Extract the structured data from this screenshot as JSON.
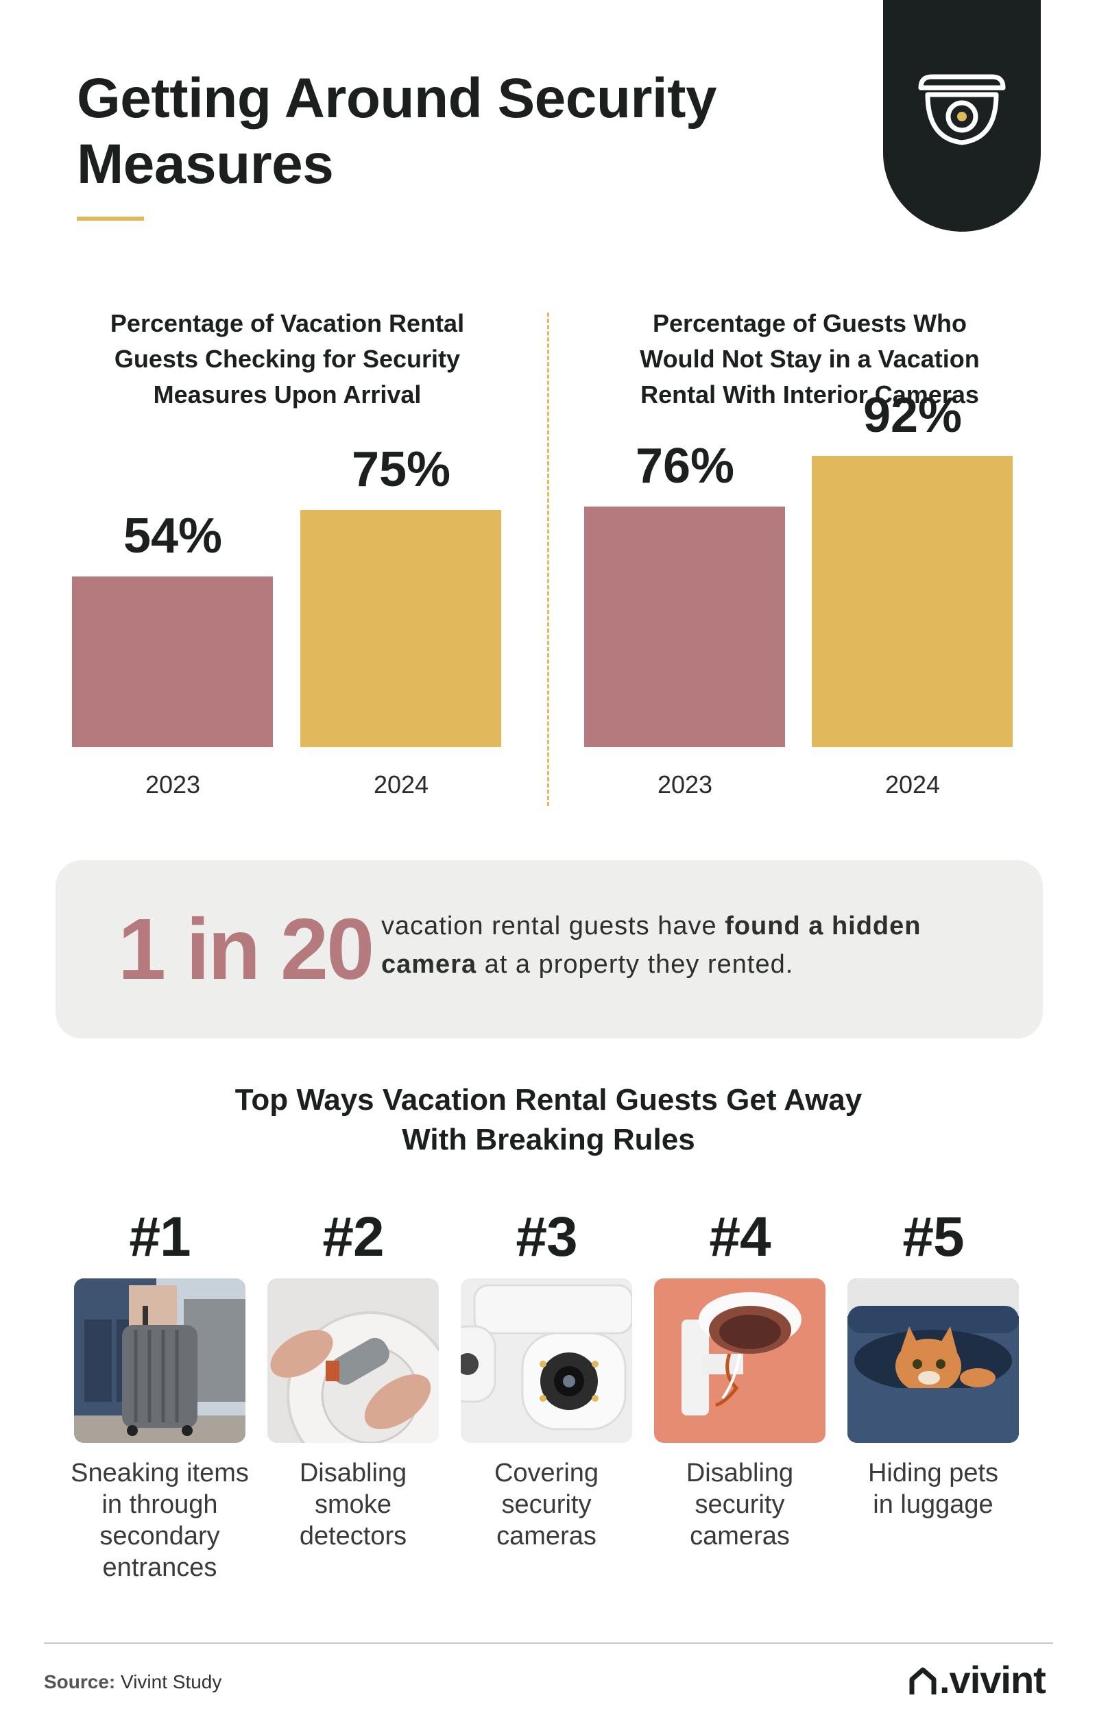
{
  "header": {
    "title_line1": "Getting Around Security",
    "title_line2": "Measures",
    "icon": "security-camera-icon"
  },
  "chart_data": [
    {
      "type": "bar",
      "title": "Percentage of Vacation Rental Guests Checking for Security Measures Upon Arrival",
      "title_lines": [
        "Percentage of Vacation Rental",
        "Guests Checking for Security",
        "Measures Upon Arrival"
      ],
      "categories": [
        "2023",
        "2024"
      ],
      "values": [
        54,
        75
      ],
      "value_labels": [
        "54%",
        "75%"
      ],
      "colors": [
        "#b57a7d",
        "#e2b85c"
      ],
      "ylim": [
        0,
        100
      ],
      "xlabel": "",
      "ylabel": ""
    },
    {
      "type": "bar",
      "title": "Percentage of Guests Who Would Not Stay in a Vacation Rental With Interior Cameras",
      "title_lines": [
        "Percentage of Guests Who",
        "Would Not Stay in a Vacation",
        "Rental With Interior Cameras"
      ],
      "categories": [
        "2023",
        "2024"
      ],
      "values": [
        76,
        92
      ],
      "value_labels": [
        "76%",
        "92%"
      ],
      "colors": [
        "#b57a7d",
        "#e2b85c"
      ],
      "ylim": [
        0,
        100
      ],
      "xlabel": "",
      "ylabel": ""
    }
  ],
  "stat": {
    "big": "1 in 20",
    "text_pre": "vacation rental guests have ",
    "text_bold": "found a hidden camera",
    "text_post": " at a property they rented."
  },
  "ways": {
    "title_line1": "Top Ways Vacation Rental Guests Get Away",
    "title_line2": "With Breaking Rules",
    "items": [
      {
        "rank": "#1",
        "lines": [
          "Sneaking items",
          "in through",
          "secondary",
          "entrances"
        ],
        "image": "suitcase-photo"
      },
      {
        "rank": "#2",
        "lines": [
          "Disabling",
          "smoke",
          "detectors"
        ],
        "image": "smoke-detector-photo"
      },
      {
        "rank": "#3",
        "lines": [
          "Covering",
          "security",
          "cameras"
        ],
        "image": "security-camera-photo"
      },
      {
        "rank": "#4",
        "lines": [
          "Disabling",
          "security",
          "cameras"
        ],
        "image": "broken-camera-photo"
      },
      {
        "rank": "#5",
        "lines": [
          "Hiding pets",
          "in luggage"
        ],
        "image": "cat-in-luggage-photo"
      }
    ]
  },
  "footer": {
    "source_label": "Source:",
    "source_value": "Vivint Study",
    "logo": ".vivint"
  },
  "colors": {
    "rose": "#b57a7d",
    "gold": "#e2b85c",
    "dark": "#1b2120",
    "panel": "#eeeeed"
  }
}
